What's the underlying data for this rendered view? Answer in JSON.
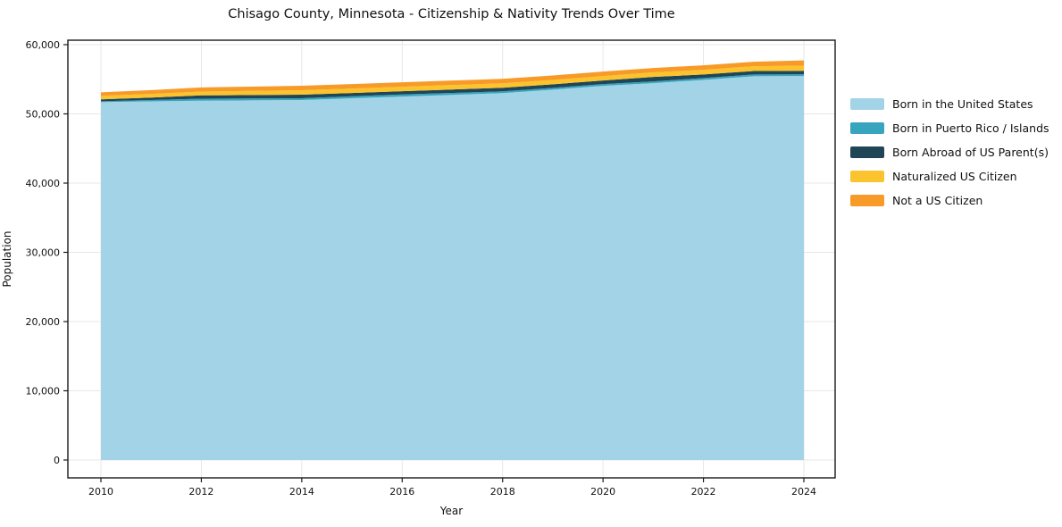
{
  "chart": {
    "title": "Chisago County, Minnesota - Citizenship & Nativity Trends Over Time",
    "xlabel": "Year",
    "ylabel": "Population"
  },
  "chart_data": {
    "type": "area",
    "stacked": true,
    "title": "Chisago County, Minnesota - Citizenship & Nativity Trends Over Time",
    "xlabel": "Year",
    "ylabel": "Population",
    "grid": true,
    "legend_position": "right-outside",
    "x": [
      2010,
      2011,
      2012,
      2013,
      2014,
      2015,
      2016,
      2017,
      2018,
      2019,
      2020,
      2021,
      2022,
      2023,
      2024
    ],
    "x_ticks": [
      2010,
      2012,
      2014,
      2016,
      2018,
      2020,
      2022,
      2024
    ],
    "y_ticks": [
      0,
      10000,
      20000,
      30000,
      40000,
      50000,
      60000
    ],
    "y_tick_labels": [
      "0",
      "10,000",
      "20,000",
      "30,000",
      "40,000",
      "50,000",
      "60,000"
    ],
    "ylim": [
      -2600,
      60650
    ],
    "xlim": [
      2009.34,
      2024.66
    ],
    "series": [
      {
        "name": "Born in the United States",
        "color": "#A3D3E6",
        "values": [
          51700,
          51800,
          51900,
          51950,
          52000,
          52250,
          52500,
          52750,
          53000,
          53500,
          54050,
          54440,
          54910,
          55430,
          55470
        ]
      },
      {
        "name": "Born in Puerto Rico / Islands",
        "color": "#38A5BF",
        "values": [
          130,
          200,
          290,
          270,
          260,
          290,
          300,
          280,
          260,
          260,
          260,
          260,
          260,
          260,
          250
        ]
      },
      {
        "name": "Born Abroad of US Parent(s)",
        "color": "#1F4557",
        "values": [
          260,
          350,
          480,
          500,
          510,
          480,
          480,
          490,
          510,
          510,
          520,
          645,
          520,
          510,
          500
        ]
      },
      {
        "name": "Naturalized US Citizen",
        "color": "#FBC32D",
        "values": [
          510,
          530,
          560,
          600,
          650,
          640,
          640,
          650,
          650,
          640,
          640,
          650,
          680,
          690,
          740
        ]
      },
      {
        "name": "Not a US Citizen",
        "color": "#F89A27",
        "values": [
          520,
          560,
          600,
          620,
          640,
          650,
          650,
          650,
          640,
          640,
          640,
          640,
          650,
          640,
          770
        ]
      }
    ],
    "style": {
      "grid_color": "#e7e7e7",
      "frame_color": "#1a1a1a",
      "tick_color": "#1a1a1a",
      "tick_label_color": "#111111",
      "background": "#ffffff"
    }
  }
}
